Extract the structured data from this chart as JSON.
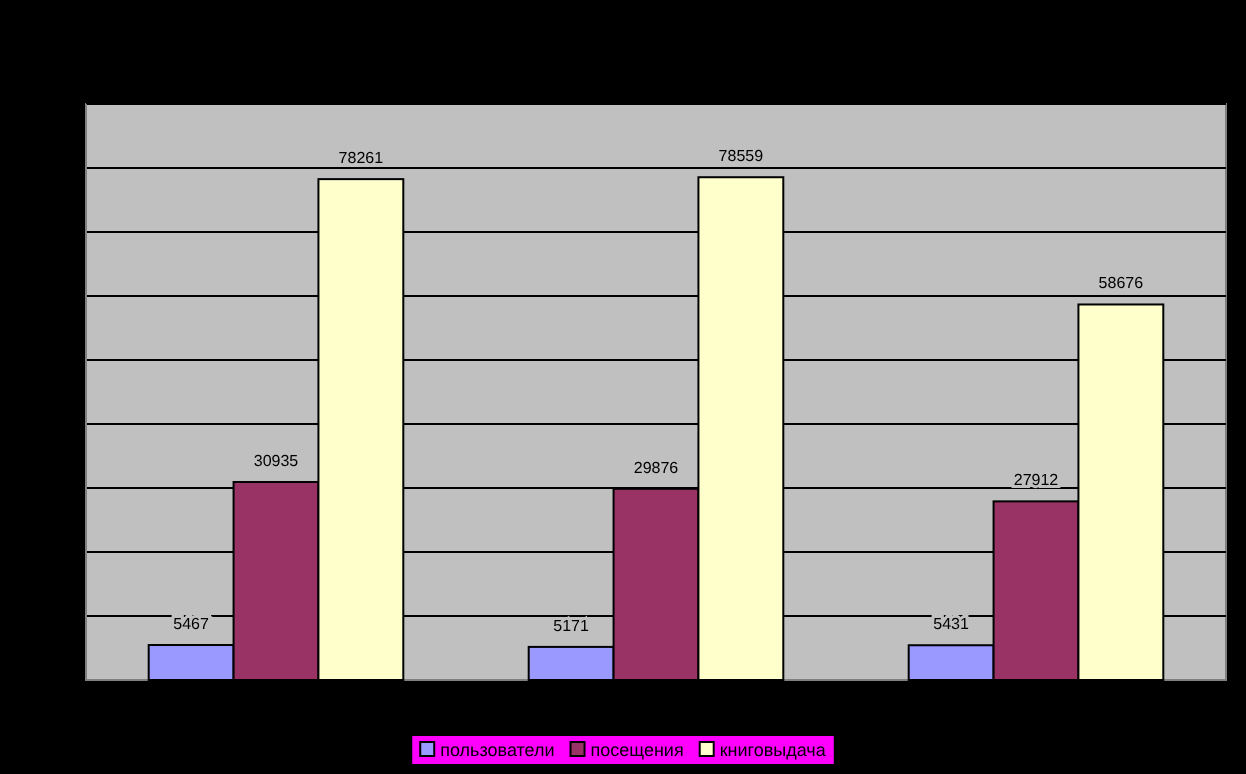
{
  "chart_data": {
    "type": "bar",
    "categories": [
      null,
      null,
      null
    ],
    "series": [
      {
        "name": "пользователи",
        "color": "#9999ff",
        "values": [
          5467,
          5171,
          5431
        ]
      },
      {
        "name": "посещения",
        "color": "#993366",
        "values": [
          30935,
          29876,
          27912
        ]
      },
      {
        "name": "книговыдача",
        "color": "#ffffcc",
        "values": [
          78261,
          78559,
          58676
        ]
      }
    ],
    "ylim": [
      0,
      90000
    ],
    "yticks": [
      {
        "value": 0,
        "label": null
      },
      {
        "value": 10000,
        "label": null
      },
      {
        "value": 20000,
        "label": null
      },
      {
        "value": 30000,
        "label": null
      },
      {
        "value": 40000,
        "label": null
      },
      {
        "value": 50000,
        "label": null
      },
      {
        "value": 60000,
        "label": null
      },
      {
        "value": 70000,
        "label": null
      },
      {
        "value": 80000,
        "label": null
      },
      {
        "value": 90000,
        "label": null
      }
    ],
    "grid": "y",
    "data_labels": true,
    "legend": "bottom"
  }
}
